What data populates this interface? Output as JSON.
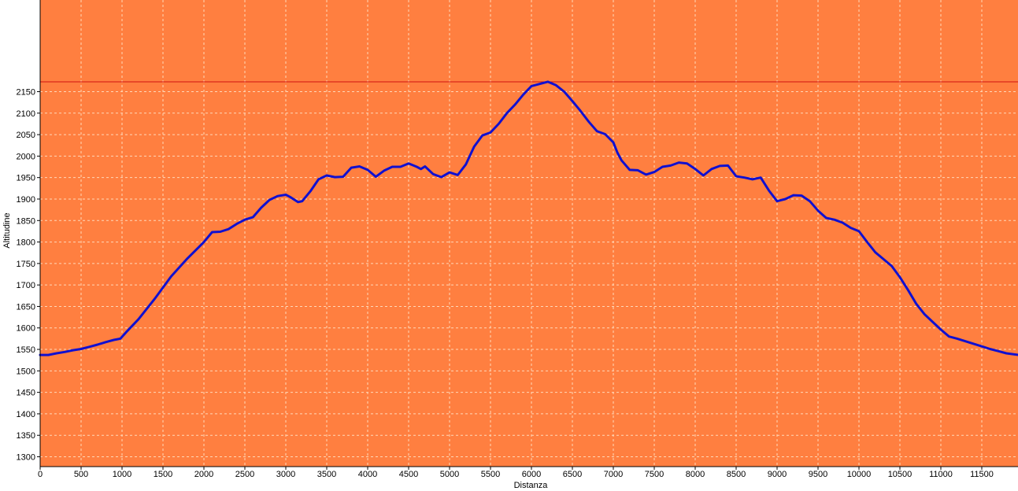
{
  "chart_data": {
    "type": "line",
    "title": "",
    "xlabel": "Distanza",
    "ylabel": "Altitudine",
    "xlim": [
      0,
      11950
    ],
    "ylim": [
      1280,
      2400
    ],
    "xticks": [
      0,
      500,
      1000,
      1500,
      2000,
      2500,
      3000,
      3500,
      4000,
      4500,
      5000,
      5500,
      6000,
      6500,
      7000,
      7500,
      8000,
      8500,
      9000,
      9500,
      10000,
      10500,
      11000,
      11500
    ],
    "yticks": [
      1300,
      1350,
      1400,
      1450,
      1500,
      1550,
      1600,
      1650,
      1700,
      1750,
      1800,
      1850,
      1900,
      1950,
      2000,
      2050,
      2100,
      2150
    ],
    "grid": true,
    "max_line": 2173,
    "colors": {
      "background": "#FF7F40",
      "series": "#1010D0",
      "grid": "#FFD8B8",
      "max_line": "#D01010"
    },
    "series": [
      {
        "values": [
          [
            0,
            1537
          ],
          [
            100,
            1537
          ],
          [
            200,
            1541
          ],
          [
            300,
            1544
          ],
          [
            400,
            1548
          ],
          [
            500,
            1551
          ],
          [
            600,
            1556
          ],
          [
            700,
            1561
          ],
          [
            800,
            1567
          ],
          [
            900,
            1572
          ],
          [
            980,
            1575
          ],
          [
            1050,
            1590
          ],
          [
            1200,
            1620
          ],
          [
            1400,
            1668
          ],
          [
            1600,
            1720
          ],
          [
            1800,
            1762
          ],
          [
            2000,
            1800
          ],
          [
            2100,
            1823
          ],
          [
            2200,
            1824
          ],
          [
            2300,
            1830
          ],
          [
            2400,
            1842
          ],
          [
            2500,
            1852
          ],
          [
            2600,
            1858
          ],
          [
            2700,
            1880
          ],
          [
            2800,
            1898
          ],
          [
            2900,
            1907
          ],
          [
            3000,
            1910
          ],
          [
            3050,
            1905
          ],
          [
            3150,
            1893
          ],
          [
            3200,
            1895
          ],
          [
            3300,
            1918
          ],
          [
            3400,
            1946
          ],
          [
            3500,
            1955
          ],
          [
            3600,
            1951
          ],
          [
            3700,
            1952
          ],
          [
            3800,
            1973
          ],
          [
            3900,
            1976
          ],
          [
            4000,
            1968
          ],
          [
            4100,
            1952
          ],
          [
            4200,
            1966
          ],
          [
            4300,
            1975
          ],
          [
            4400,
            1975
          ],
          [
            4500,
            1983
          ],
          [
            4600,
            1975
          ],
          [
            4650,
            1970
          ],
          [
            4700,
            1976
          ],
          [
            4800,
            1958
          ],
          [
            4900,
            1951
          ],
          [
            5000,
            1962
          ],
          [
            5100,
            1956
          ],
          [
            5200,
            1981
          ],
          [
            5300,
            2022
          ],
          [
            5400,
            2048
          ],
          [
            5500,
            2055
          ],
          [
            5600,
            2075
          ],
          [
            5700,
            2100
          ],
          [
            5800,
            2120
          ],
          [
            5900,
            2143
          ],
          [
            6000,
            2163
          ],
          [
            6100,
            2168
          ],
          [
            6200,
            2173
          ],
          [
            6300,
            2165
          ],
          [
            6400,
            2150
          ],
          [
            6500,
            2128
          ],
          [
            6600,
            2105
          ],
          [
            6700,
            2080
          ],
          [
            6800,
            2058
          ],
          [
            6900,
            2051
          ],
          [
            7000,
            2032
          ],
          [
            7050,
            2008
          ],
          [
            7100,
            1990
          ],
          [
            7200,
            1968
          ],
          [
            7300,
            1967
          ],
          [
            7400,
            1957
          ],
          [
            7500,
            1963
          ],
          [
            7600,
            1975
          ],
          [
            7700,
            1978
          ],
          [
            7800,
            1985
          ],
          [
            7900,
            1983
          ],
          [
            8000,
            1970
          ],
          [
            8100,
            1955
          ],
          [
            8200,
            1970
          ],
          [
            8300,
            1977
          ],
          [
            8400,
            1978
          ],
          [
            8500,
            1953
          ],
          [
            8600,
            1950
          ],
          [
            8700,
            1946
          ],
          [
            8800,
            1950
          ],
          [
            8900,
            1920
          ],
          [
            9000,
            1895
          ],
          [
            9100,
            1900
          ],
          [
            9200,
            1909
          ],
          [
            9300,
            1908
          ],
          [
            9400,
            1895
          ],
          [
            9500,
            1873
          ],
          [
            9600,
            1856
          ],
          [
            9700,
            1852
          ],
          [
            9800,
            1845
          ],
          [
            9900,
            1833
          ],
          [
            10000,
            1825
          ],
          [
            10100,
            1800
          ],
          [
            10200,
            1776
          ],
          [
            10300,
            1760
          ],
          [
            10400,
            1744
          ],
          [
            10500,
            1718
          ],
          [
            10600,
            1688
          ],
          [
            10700,
            1656
          ],
          [
            10800,
            1632
          ],
          [
            10900,
            1614
          ],
          [
            11000,
            1596
          ],
          [
            11100,
            1580
          ],
          [
            11200,
            1575
          ],
          [
            11300,
            1569
          ],
          [
            11400,
            1563
          ],
          [
            11500,
            1557
          ],
          [
            11600,
            1551
          ],
          [
            11700,
            1546
          ],
          [
            11800,
            1541
          ],
          [
            11950,
            1537
          ]
        ]
      }
    ]
  }
}
